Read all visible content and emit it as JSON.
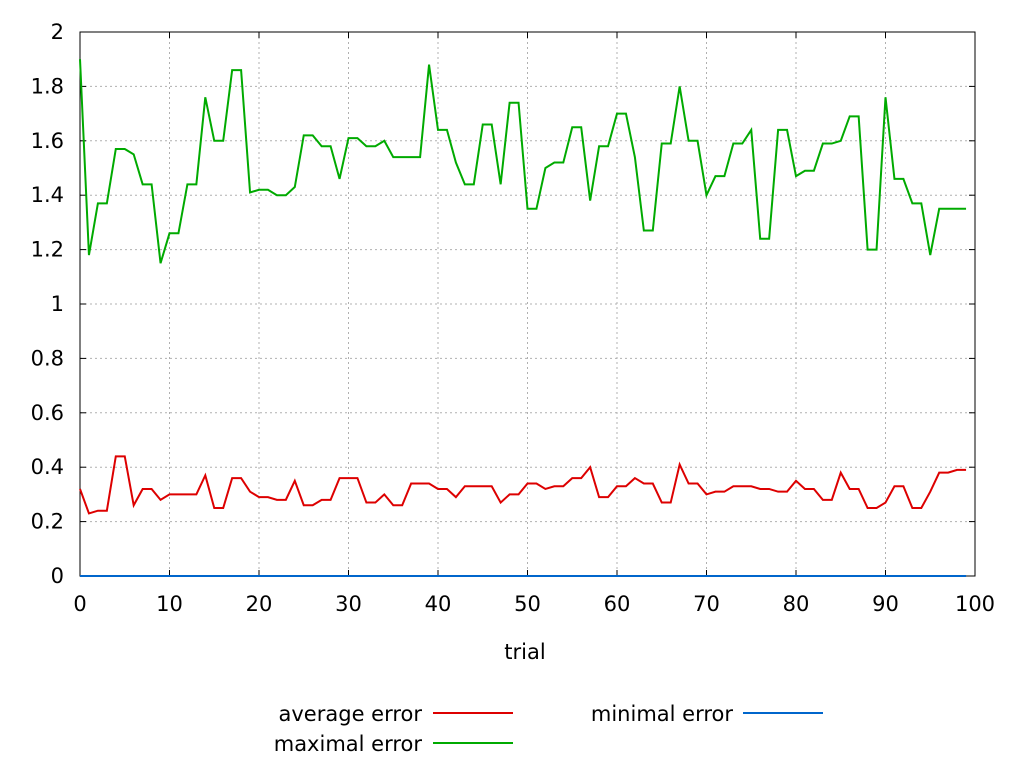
{
  "chart_data": {
    "type": "line",
    "xlabel": "trial",
    "ylabel": "",
    "xlim": [
      0,
      100
    ],
    "ylim": [
      0,
      2
    ],
    "x_ticks": [
      0,
      10,
      20,
      30,
      40,
      50,
      60,
      70,
      80,
      90,
      100
    ],
    "y_ticks": [
      0,
      0.2,
      0.4,
      0.6,
      0.8,
      1,
      1.2,
      1.4,
      1.6,
      1.8,
      2
    ],
    "x_tick_labels": [
      "0",
      "10",
      "20",
      "30",
      "40",
      "50",
      "60",
      "70",
      "80",
      "90",
      "100"
    ],
    "y_tick_labels": [
      "0",
      "0.2",
      "0.4",
      "0.6",
      "0.8",
      "1",
      "1.2",
      "1.4",
      "1.6",
      "1.8",
      "2"
    ],
    "grid": true,
    "legend": "bottom",
    "series": [
      {
        "name": "average error",
        "color": "#dd0000",
        "values": [
          0.32,
          0.23,
          0.24,
          0.24,
          0.44,
          0.44,
          0.26,
          0.32,
          0.32,
          0.28,
          0.3,
          0.3,
          0.3,
          0.3,
          0.37,
          0.25,
          0.25,
          0.36,
          0.36,
          0.31,
          0.29,
          0.29,
          0.28,
          0.28,
          0.35,
          0.26,
          0.26,
          0.28,
          0.28,
          0.36,
          0.36,
          0.36,
          0.27,
          0.27,
          0.3,
          0.26,
          0.26,
          0.34,
          0.34,
          0.34,
          0.32,
          0.32,
          0.29,
          0.33,
          0.33,
          0.33,
          0.33,
          0.27,
          0.3,
          0.3,
          0.34,
          0.34,
          0.32,
          0.33,
          0.33,
          0.36,
          0.36,
          0.4,
          0.29,
          0.29,
          0.33,
          0.33,
          0.36,
          0.34,
          0.34,
          0.27,
          0.27,
          0.41,
          0.34,
          0.34,
          0.3,
          0.31,
          0.31,
          0.33,
          0.33,
          0.33,
          0.32,
          0.32,
          0.31,
          0.31,
          0.35,
          0.32,
          0.32,
          0.28,
          0.28,
          0.38,
          0.32,
          0.32,
          0.25,
          0.25,
          0.27,
          0.33,
          0.33,
          0.25,
          0.25,
          0.31,
          0.38,
          0.38,
          0.39,
          0.39
        ]
      },
      {
        "name": "maximal error",
        "color": "#00aa00",
        "values": [
          1.9,
          1.18,
          1.37,
          1.37,
          1.57,
          1.57,
          1.55,
          1.44,
          1.44,
          1.15,
          1.26,
          1.26,
          1.44,
          1.44,
          1.76,
          1.6,
          1.6,
          1.86,
          1.86,
          1.41,
          1.42,
          1.42,
          1.4,
          1.4,
          1.43,
          1.62,
          1.62,
          1.58,
          1.58,
          1.46,
          1.61,
          1.61,
          1.58,
          1.58,
          1.6,
          1.54,
          1.54,
          1.54,
          1.54,
          1.88,
          1.64,
          1.64,
          1.52,
          1.44,
          1.44,
          1.66,
          1.66,
          1.44,
          1.74,
          1.74,
          1.35,
          1.35,
          1.5,
          1.52,
          1.52,
          1.65,
          1.65,
          1.38,
          1.58,
          1.58,
          1.7,
          1.7,
          1.54,
          1.27,
          1.27,
          1.59,
          1.59,
          1.8,
          1.6,
          1.6,
          1.4,
          1.47,
          1.47,
          1.59,
          1.59,
          1.64,
          1.24,
          1.24,
          1.64,
          1.64,
          1.47,
          1.49,
          1.49,
          1.59,
          1.59,
          1.6,
          1.69,
          1.69,
          1.2,
          1.2,
          1.76,
          1.46,
          1.46,
          1.37,
          1.37,
          1.18,
          1.35,
          1.35,
          1.35,
          1.35
        ]
      },
      {
        "name": "minimal error",
        "color": "#0066cc",
        "values": [
          0,
          0,
          0,
          0,
          0,
          0,
          0,
          0,
          0,
          0,
          0,
          0,
          0,
          0,
          0,
          0,
          0,
          0,
          0,
          0,
          0,
          0,
          0,
          0,
          0,
          0,
          0,
          0,
          0,
          0,
          0,
          0,
          0,
          0,
          0,
          0,
          0,
          0,
          0,
          0,
          0,
          0,
          0,
          0,
          0,
          0,
          0,
          0,
          0,
          0,
          0,
          0,
          0,
          0,
          0,
          0,
          0,
          0,
          0,
          0,
          0,
          0,
          0,
          0,
          0,
          0,
          0,
          0,
          0,
          0,
          0,
          0,
          0,
          0,
          0,
          0,
          0,
          0,
          0,
          0,
          0,
          0,
          0,
          0,
          0,
          0,
          0,
          0,
          0,
          0,
          0,
          0,
          0,
          0,
          0,
          0,
          0,
          0,
          0,
          0
        ]
      }
    ]
  }
}
